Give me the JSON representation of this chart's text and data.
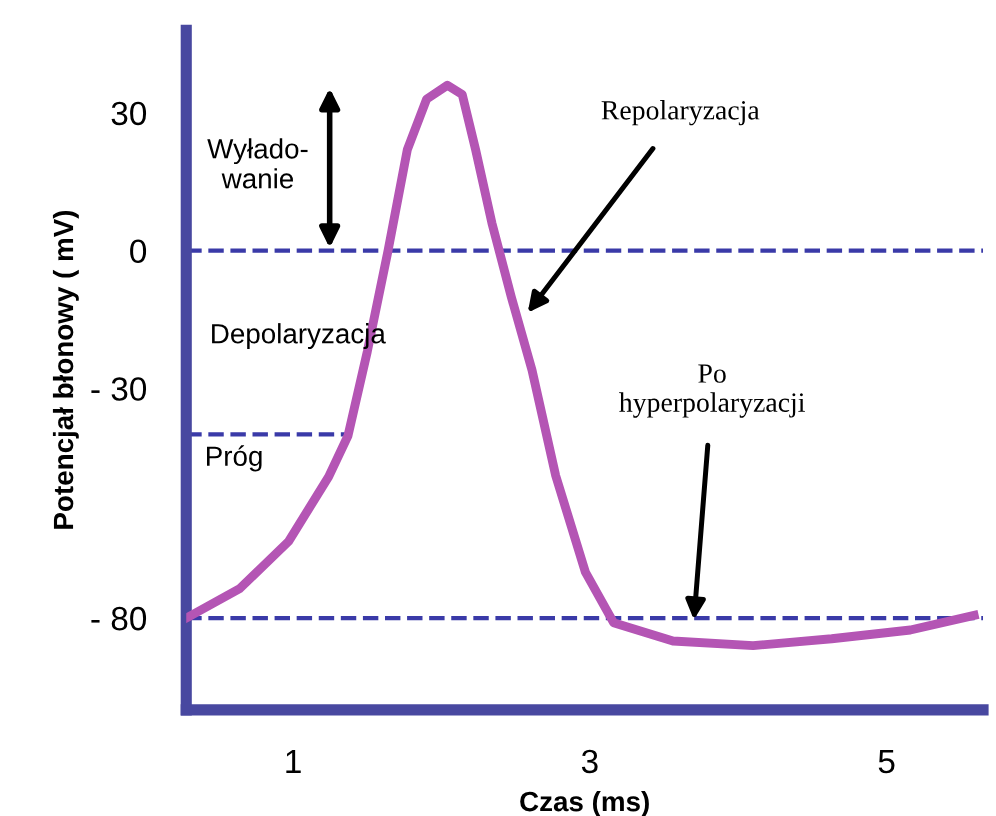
{
  "chart_data": {
    "type": "line",
    "xlabel": "Czas (ms)",
    "ylabel": "Potencjał błonowy ( mV)",
    "x": [
      0.28,
      0.64,
      0.97,
      1.24,
      1.37,
      1.5,
      1.64,
      1.77,
      1.9,
      2.04,
      2.14,
      2.23,
      2.34,
      2.47,
      2.61,
      2.77,
      2.97,
      3.16,
      3.56,
      4.1,
      4.63,
      5.16,
      5.59
    ],
    "series": [
      {
        "color": "#b455b4",
        "values": [
          -80,
          -73.6,
          -63.3,
          -49.2,
          -40.3,
          -22,
          0,
          22,
          33,
          36,
          34,
          22,
          6,
          -10,
          -26,
          -49,
          -70,
          -81,
          -85,
          -86,
          -84.5,
          -82.6,
          -79.4
        ]
      }
    ],
    "xlim": [
      0.28,
      5.65
    ],
    "xticks": [
      1,
      3,
      5
    ],
    "ylim": [
      -100,
      48
    ],
    "yticks": [
      {
        "value": -80,
        "label": "- 80"
      },
      {
        "value": -30,
        "label": "- 30"
      },
      0,
      30
    ],
    "ref_lines": [
      {
        "axis": "y",
        "value": 0,
        "color": "#3a3aa8",
        "line_style": "dashed"
      },
      {
        "axis": "y",
        "value": -40,
        "color": "#3a3aa8",
        "line_style": "dashed"
      },
      {
        "axis": "y",
        "value": -80,
        "color": "#3a3aa8",
        "line_style": "dashed"
      }
    ],
    "annotations": [
      "Wyłado-\nwanie",
      "Depolaryzacja",
      "Próg",
      {
        "text": "Repolaryzacja",
        "x": 2.57,
        "y": -14
      },
      {
        "text": "Po\nhyperpolaryzacji",
        "x": 3.7,
        "y": -81
      }
    ],
    "grid": false
  }
}
